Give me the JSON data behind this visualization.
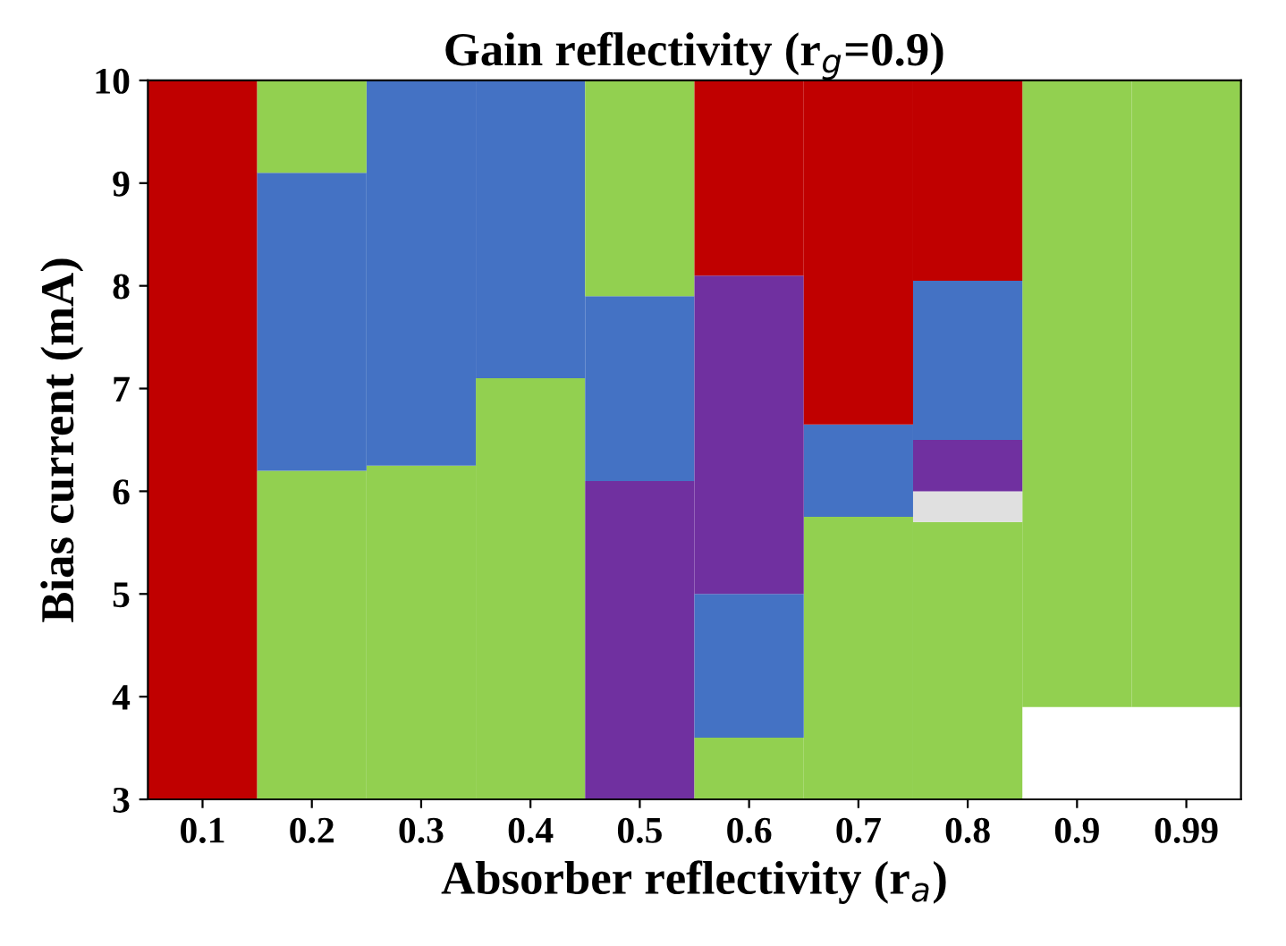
{
  "chart_data": {
    "type": "bar",
    "title": "Gain reflectivity (r$_{g}$=0.9)",
    "xlabel": "Absorber reflectivity (r$_{a}$)",
    "ylabel": "Bias current (mA)",
    "categories": [
      "0.1",
      "0.2",
      "0.3",
      "0.4",
      "0.5",
      "0.6",
      "0.7",
      "0.8",
      "0.9",
      "0.99"
    ],
    "series": [
      {
        "base": [
          3,
          3,
          3,
          3,
          3,
          3,
          3,
          3,
          3.9,
          3.9
        ],
        "values": [
          7,
          3.2,
          3.25,
          4.1,
          3.1,
          0.6,
          2.75,
          2.7,
          6.1,
          6.1
        ],
        "colors": [
          "#c00000",
          "#92d050",
          "#92d050",
          "#92d050",
          "#7030a0",
          "#92d050",
          "#92d050",
          "#92d050",
          "#92d050",
          "#92d050"
        ]
      },
      {
        "base": [
          null,
          6.2,
          6.25,
          7.1,
          6.1,
          3.6,
          5.75,
          5.7,
          null,
          null
        ],
        "values": [
          null,
          2.9,
          3.75,
          2.9,
          1.8,
          1.4,
          0.9,
          0.3,
          null,
          null
        ],
        "colors": [
          null,
          "#4472c4",
          "#4472c4",
          "#4472c4",
          "#4472c4",
          "#4472c4",
          "#4472c4",
          "#e0e0e0",
          null,
          null
        ]
      },
      {
        "base": [
          null,
          9.1,
          null,
          null,
          7.9,
          5.0,
          6.65,
          6.0,
          null,
          null
        ],
        "values": [
          null,
          0.9,
          null,
          null,
          2.1,
          3.1,
          3.35,
          0.5,
          null,
          null
        ],
        "colors": [
          null,
          "#92d050",
          null,
          null,
          "#92d050",
          "#7030a0",
          "#c00000",
          "#7030a0",
          null,
          null
        ]
      },
      {
        "base": [
          null,
          null,
          null,
          null,
          null,
          8.1,
          null,
          6.5,
          null,
          null
        ],
        "values": [
          null,
          null,
          null,
          null,
          null,
          1.9,
          null,
          1.55,
          null,
          null
        ],
        "colors": [
          null,
          null,
          null,
          null,
          null,
          "#c00000",
          null,
          "#4472c4",
          null,
          null
        ]
      },
      {
        "base": [
          null,
          null,
          null,
          null,
          null,
          null,
          null,
          8.05,
          null,
          null
        ],
        "values": [
          null,
          null,
          null,
          null,
          null,
          null,
          null,
          1.95,
          null,
          null
        ],
        "colors": [
          null,
          null,
          null,
          null,
          null,
          null,
          null,
          "#c00000",
          null,
          null
        ]
      }
    ],
    "ylim": [
      3,
      10
    ],
    "yticks": [
      3,
      4,
      5,
      6,
      7,
      8,
      9,
      10
    ],
    "grid": false,
    "legend": false
  }
}
